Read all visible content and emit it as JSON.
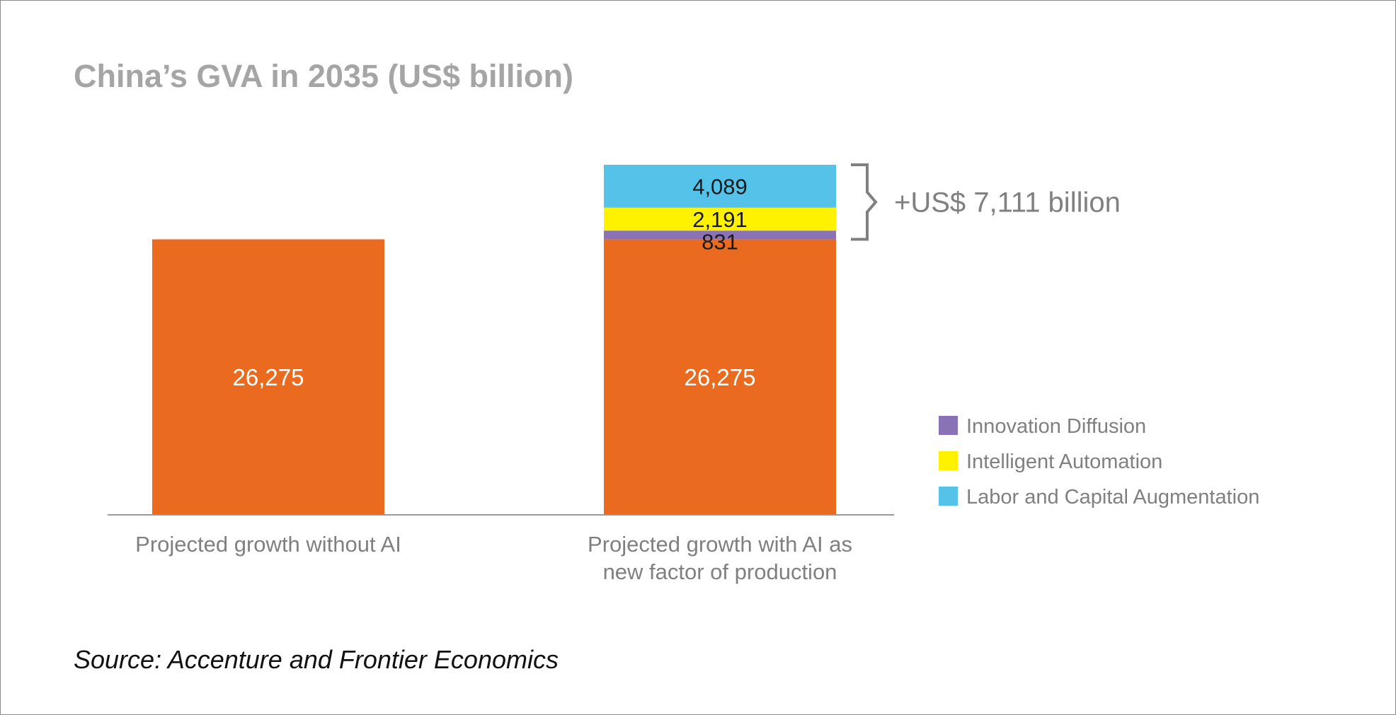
{
  "chart_data": {
    "type": "bar",
    "stacked": true,
    "title": "China’s GVA in 2035 (US$ billion)",
    "categories": [
      [
        "Projected growth without AI"
      ],
      [
        "Projected growth with AI as",
        "new factor of production"
      ]
    ],
    "series": [
      {
        "name": "Baseline",
        "color": "#EA6B1F",
        "values": [
          26275,
          26275
        ],
        "labels": [
          "26,275",
          "26,275"
        ]
      },
      {
        "name": "Innovation Diffusion",
        "color": "#8A72B6",
        "values": [
          0,
          831
        ],
        "labels": [
          "",
          "831"
        ]
      },
      {
        "name": "Intelligent Automation",
        "color": "#FFF200",
        "values": [
          0,
          2191
        ],
        "labels": [
          "",
          "2,191"
        ]
      },
      {
        "name": "Labor and Capital Augmentation",
        "color": "#55C2EA",
        "values": [
          0,
          4089
        ],
        "labels": [
          "",
          "4,089"
        ]
      }
    ],
    "legend": [
      {
        "name": "Innovation Diffusion",
        "color": "#8A72B6"
      },
      {
        "name": "Intelligent Automation",
        "color": "#FFF200"
      },
      {
        "name": "Labor and Capital Augmentation",
        "color": "#55C2EA"
      }
    ],
    "legend_position": "right",
    "annotation": "+US$ 7,111 billion",
    "ylim": [
      0,
      33386
    ],
    "grid": false,
    "source": "Source: Accenture and Frontier Economics"
  }
}
